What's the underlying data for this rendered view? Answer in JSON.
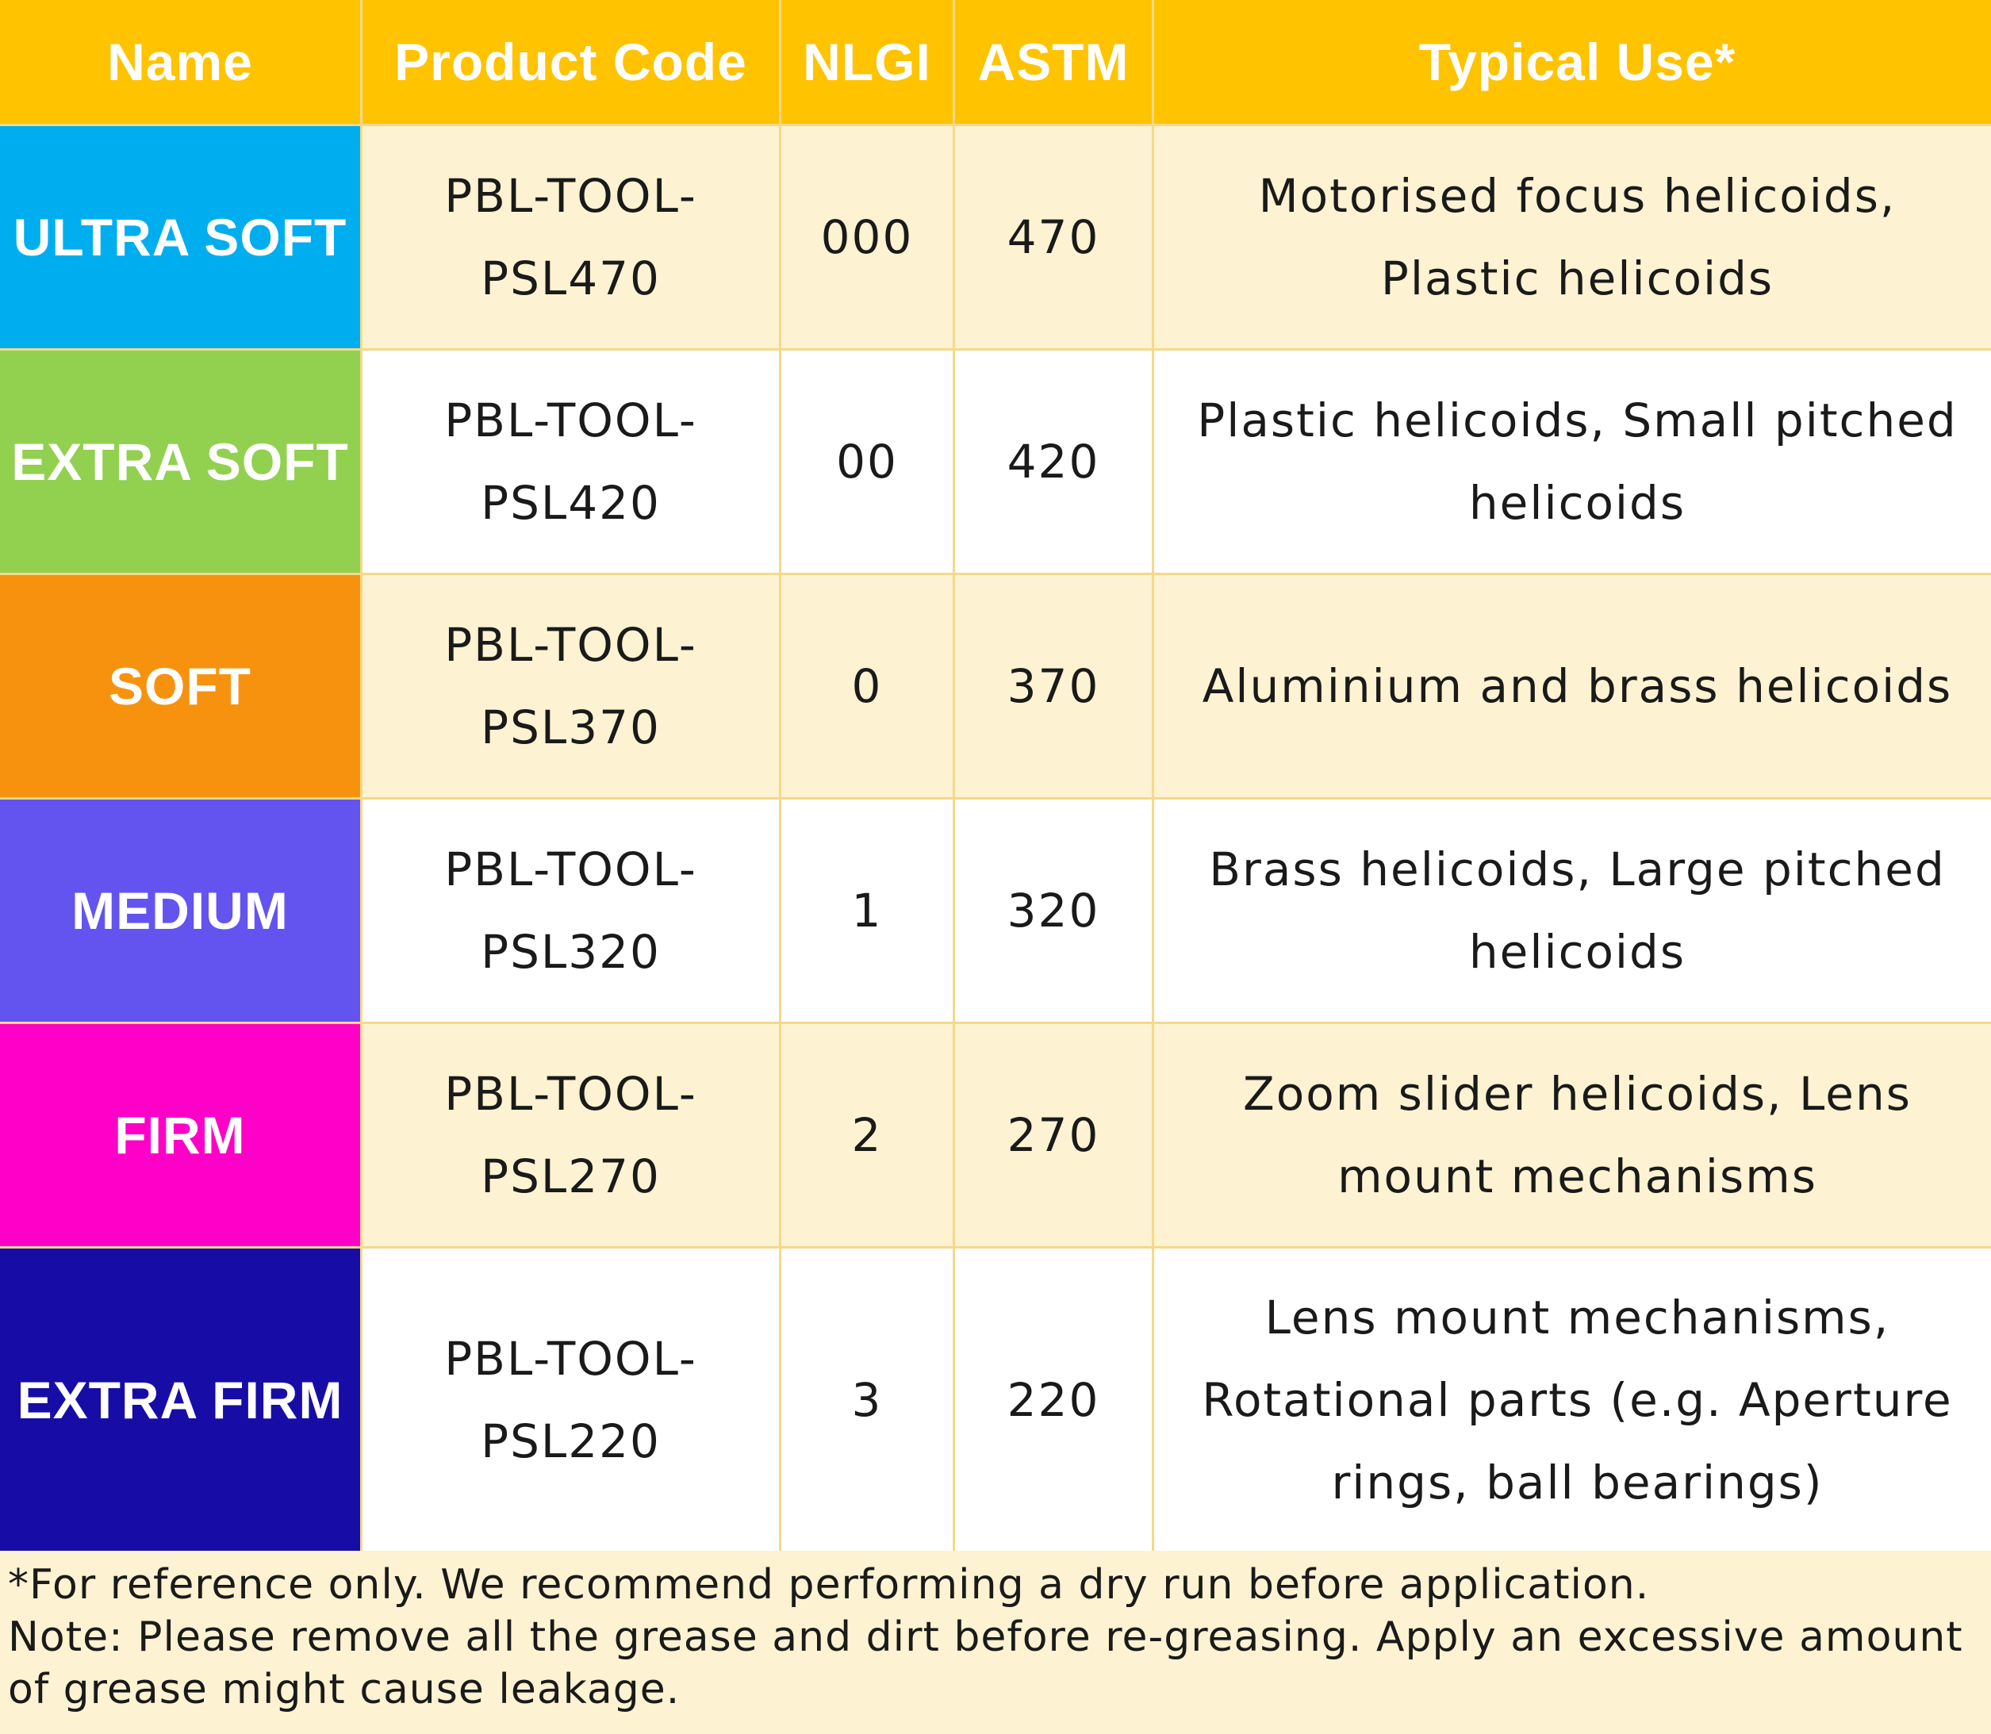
{
  "header": {
    "name": "Name",
    "product_code": "Product Code",
    "nlgi": "NLGI",
    "astm": "ASTM",
    "typical_use": "Typical Use*"
  },
  "colors": {
    "header_bg": "#ffc300",
    "ultra_soft": "#00aeef",
    "extra_soft": "#92d050",
    "soft": "#f7920f",
    "medium": "#6354f0",
    "firm": "#ff00c8",
    "extra_firm": "#170da6"
  },
  "rows": [
    {
      "name": "ULTRA SOFT",
      "code_line1": "PBL-TOOL-",
      "code_line2": "PSL470",
      "nlgi": "000",
      "astm": "470",
      "use": "Motorised focus helicoids, Plastic helicoids"
    },
    {
      "name": "EXTRA SOFT",
      "code_line1": "PBL-TOOL-",
      "code_line2": "PSL420",
      "nlgi": "00",
      "astm": "420",
      "use": "Plastic helicoids, Small pitched helicoids"
    },
    {
      "name": "SOFT",
      "code_line1": "PBL-TOOL-",
      "code_line2": "PSL370",
      "nlgi": "0",
      "astm": "370",
      "use": "Aluminium and brass helicoids"
    },
    {
      "name": "MEDIUM",
      "code_line1": "PBL-TOOL-",
      "code_line2": "PSL320",
      "nlgi": "1",
      "astm": "320",
      "use": "Brass helicoids, Large pitched helicoids"
    },
    {
      "name": "FIRM",
      "code_line1": "PBL-TOOL-",
      "code_line2": "PSL270",
      "nlgi": "2",
      "astm": "270",
      "use": "Zoom slider helicoids, Lens mount mechanisms"
    },
    {
      "name": "EXTRA FIRM",
      "code_line1": "PBL-TOOL-",
      "code_line2": "PSL220",
      "nlgi": "3",
      "astm": "220",
      "use": "Lens mount mechanisms, Rotational parts (e.g. Aperture rings, ball bearings)"
    }
  ],
  "footer": {
    "reference": "*For reference only. We recommend performing a dry run before application.",
    "note": "Note: Please remove all the grease and dirt before re-greasing. Apply an excessive amount of grease might cause leakage."
  }
}
